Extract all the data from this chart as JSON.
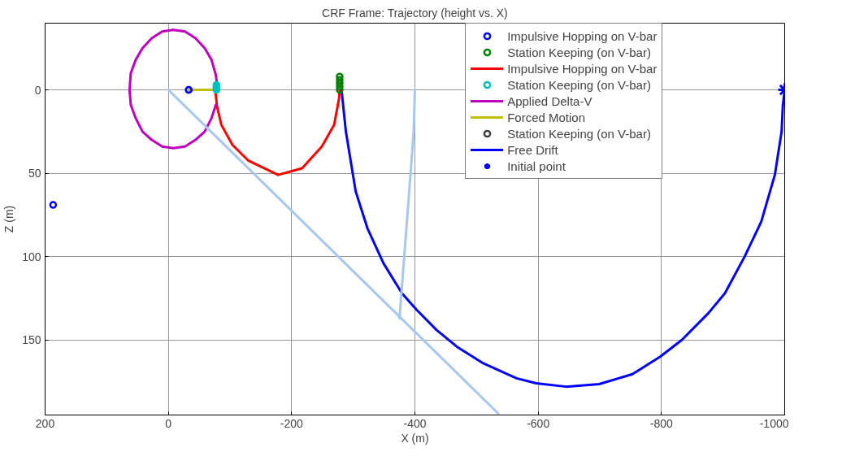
{
  "chart_data": {
    "type": "line",
    "title": "CRF Frame: Trajectory (height vs. X)",
    "xlabel": "X (m)",
    "ylabel": "Z (m)",
    "xlim": [
      200,
      -1000
    ],
    "xticks": [
      200,
      0,
      -200,
      -400,
      -600,
      -800,
      -1000
    ],
    "ylim": [
      195,
      -40
    ],
    "yticks": [
      0,
      50,
      100,
      150
    ],
    "grid": true,
    "legend": "top right",
    "series": [
      {
        "name": "Impulsive Hopping on V-bar",
        "color": "#0000ff",
        "type": "scatter",
        "marker": "circle",
        "x": [
          187,
          -33
        ],
        "values": [
          69,
          0
        ]
      },
      {
        "name": "Station Keeping (on V-bar)",
        "color": "#008000",
        "type": "scatter",
        "marker": "circle",
        "x": [
          -278,
          -278,
          -278,
          -278,
          -278
        ],
        "values": [
          0,
          -2,
          -4,
          -6,
          -8
        ]
      },
      {
        "name": "Impulsive Hopping on V-bar",
        "color": "#ff0000",
        "x": [
          -76,
          -79,
          -86,
          -104,
          -130,
          -178,
          -217,
          -249,
          -269,
          -277,
          -278
        ],
        "values": [
          0,
          10,
          21,
          33,
          42.5,
          51,
          47,
          34,
          21,
          5,
          0
        ]
      },
      {
        "name": "Station Keeping (on V-bar)",
        "color": "#00bfbf",
        "type": "scatter",
        "marker": "circle",
        "x": [
          -78,
          -78,
          -78,
          -78
        ],
        "values": [
          0,
          -1,
          -2,
          -3
        ]
      },
      {
        "name": "Applied Delta-V",
        "color": "#bf00bf",
        "x": [
          -80,
          -77,
          -70,
          -59,
          -44,
          -27,
          -8,
          10,
          27,
          42,
          53,
          61,
          63,
          61,
          53,
          42,
          27,
          10,
          -8,
          -27,
          -44,
          -59,
          -70,
          -77
        ],
        "values": [
          0,
          -9,
          -18,
          -25,
          -31,
          -35,
          -36,
          -35,
          -31,
          -25,
          -18,
          -10,
          0,
          9,
          17,
          25,
          30,
          34,
          35,
          34,
          30,
          25,
          17,
          9
        ]
      },
      {
        "name": "Forced Motion",
        "color": "#bfbf00",
        "x": [
          -33,
          -78
        ],
        "values": [
          0,
          0
        ]
      },
      {
        "name": "Station Keeping (on V-bar)",
        "color": "#404040",
        "type": "scatter",
        "marker": "circle",
        "x": [
          -33
        ],
        "values": [
          0
        ]
      },
      {
        "name": "Free Drift",
        "color": "#0000ff",
        "x": [
          -281,
          -288,
          -304,
          -323,
          -349,
          -379,
          -403,
          -435,
          -468,
          -511,
          -565,
          -597,
          -645,
          -699,
          -753,
          -798,
          -833,
          -876,
          -903,
          -935,
          -962,
          -984,
          -995,
          -997,
          -1000
        ],
        "values": [
          0,
          25,
          61,
          83,
          104,
          122,
          132,
          144,
          154,
          164,
          173,
          176,
          178,
          176.5,
          170.5,
          160,
          150,
          134,
          122,
          100,
          79,
          51,
          25,
          9.5,
          0
        ]
      },
      {
        "name": "Initial point",
        "color": "#0000ff",
        "type": "scatter",
        "marker": "cross",
        "x": [
          -1000
        ],
        "values": [
          0
        ]
      },
      {
        "color": "#a6c8f0",
        "x": [
          0,
          -535
        ],
        "values": [
          0,
          194
        ]
      },
      {
        "color": "#a6c8f0",
        "x": [
          -400,
          -398,
          -393,
          -375
        ],
        "values": [
          0,
          25,
          50,
          137
        ]
      }
    ]
  }
}
